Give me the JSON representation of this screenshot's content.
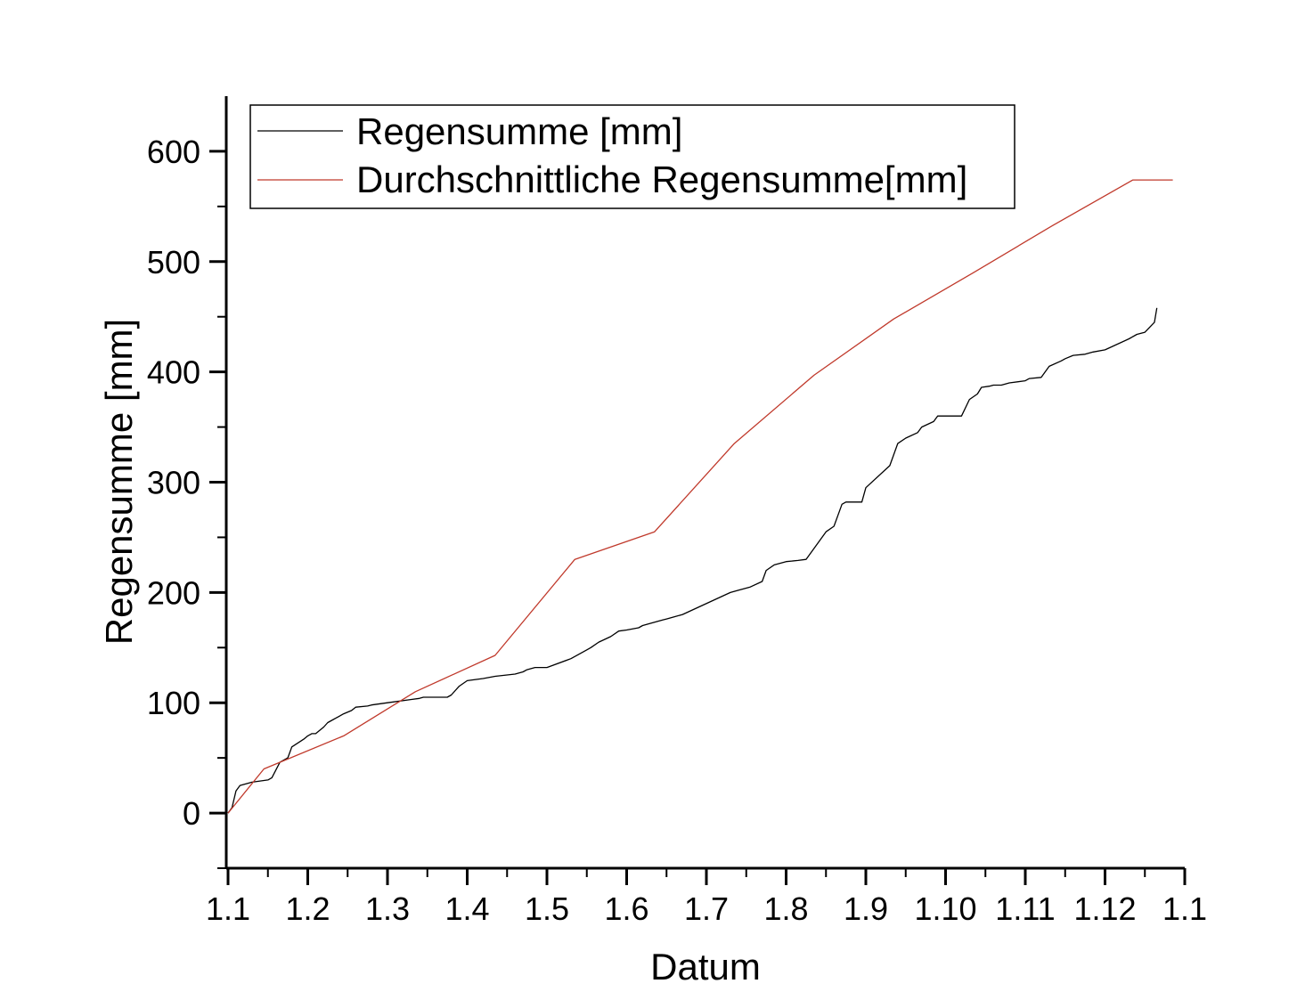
{
  "chart_data": {
    "type": "line",
    "xlabel": "Datum",
    "ylabel": "Regensumme [mm]",
    "ylim": [
      -50,
      650
    ],
    "xlim": [
      0,
      12
    ],
    "x_tick_labels": [
      "1.1",
      "1.2",
      "1.3",
      "1.4",
      "1.5",
      "1.6",
      "1.7",
      "1.8",
      "1.9",
      "1.10",
      "1.11",
      "1.12",
      "1.1"
    ],
    "y_ticks": [
      0,
      100,
      200,
      300,
      400,
      500,
      600
    ],
    "legend_position": "top-left",
    "grid": false,
    "series": [
      {
        "name": "Regensumme [mm]",
        "color": "#000000",
        "x": [
          0,
          0.05,
          0.1,
          0.15,
          0.3,
          0.5,
          0.55,
          0.65,
          0.7,
          0.75,
          0.8,
          0.95,
          1.0,
          1.05,
          1.1,
          1.2,
          1.25,
          1.3,
          1.35,
          1.45,
          1.55,
          1.6,
          1.75,
          1.8,
          2.0,
          2.3,
          2.4,
          2.45,
          2.75,
          2.8,
          2.9,
          3.0,
          3.2,
          3.35,
          3.6,
          3.7,
          3.75,
          3.85,
          4.0,
          4.3,
          4.5,
          4.55,
          4.65,
          4.8,
          4.9,
          5.0,
          5.15,
          5.2,
          5.3,
          5.45,
          5.5,
          5.6,
          5.7,
          6.3,
          6.4,
          6.55,
          6.7,
          6.75,
          6.85,
          7.0,
          7.15,
          7.25,
          7.5,
          7.6,
          7.65,
          7.7,
          7.75,
          7.95,
          8.0,
          8.3,
          8.4,
          8.5,
          8.65,
          8.7,
          8.85,
          8.9,
          8.95,
          9.1,
          9.2,
          9.3,
          9.4,
          9.45,
          9.55,
          9.6,
          9.7,
          9.8,
          10.0,
          10.05,
          10.2,
          10.3,
          10.45,
          10.5,
          10.6,
          10.75,
          10.85,
          11.0,
          11.3,
          11.4,
          11.5,
          11.62,
          11.65
        ],
        "values": [
          0,
          5,
          20,
          25,
          28,
          30,
          32,
          46,
          48,
          50,
          60,
          67,
          70,
          72,
          72,
          78,
          82,
          84,
          86,
          90,
          93,
          96,
          97,
          98,
          100,
          103,
          104,
          105,
          105,
          107,
          115,
          120,
          122,
          124,
          126,
          128,
          130,
          132,
          132,
          140,
          148,
          150,
          155,
          160,
          165,
          166,
          168,
          170,
          172,
          175,
          176,
          178,
          180,
          200,
          202,
          205,
          210,
          220,
          225,
          228,
          229,
          230,
          255,
          260,
          270,
          280,
          282,
          282,
          295,
          315,
          335,
          340,
          345,
          350,
          355,
          360,
          360,
          360,
          360,
          375,
          380,
          386,
          387,
          388,
          388,
          390,
          392,
          394,
          395,
          405,
          410,
          412,
          415,
          416,
          418,
          420,
          430,
          434,
          436,
          445,
          458
        ]
      },
      {
        "name": "Durchschnittliche Regensumme[mm]",
        "color": "#c0392b",
        "x": [
          0,
          0.45,
          1.45,
          2.35,
          3.35,
          4.35,
          5.35,
          6.35,
          7.35,
          8.35,
          9.35,
          10.35,
          11.35,
          11.85
        ],
        "values": [
          0,
          40,
          70,
          110,
          143,
          230,
          255,
          335,
          397,
          448,
          490,
          533,
          574,
          574
        ]
      }
    ]
  }
}
